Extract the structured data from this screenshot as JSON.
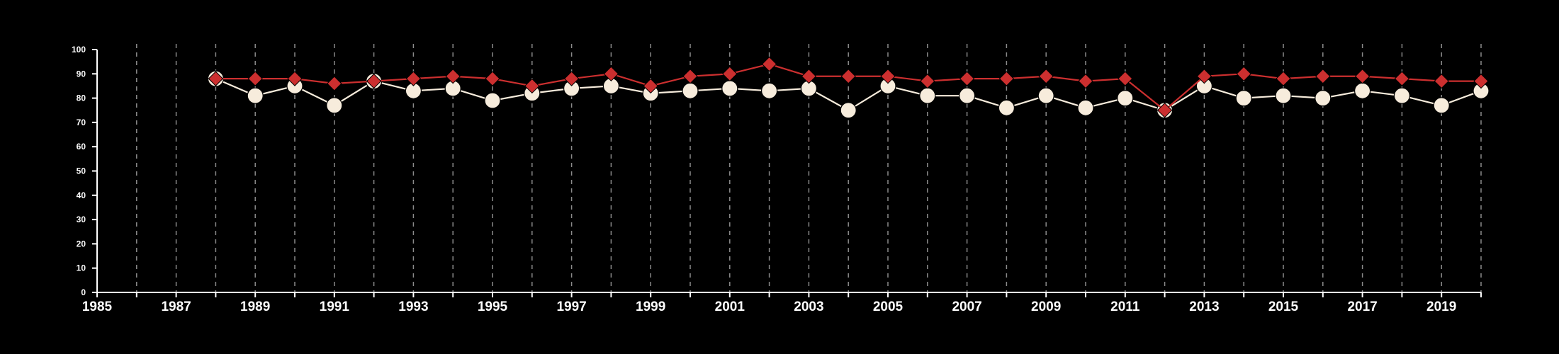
{
  "chart_data": {
    "type": "line",
    "x": [
      1988,
      1989,
      1990,
      1991,
      1992,
      1993,
      1994,
      1995,
      1996,
      1997,
      1998,
      1999,
      2000,
      2001,
      2002,
      2003,
      2004,
      2005,
      2006,
      2007,
      2008,
      2009,
      2010,
      2011,
      2012,
      2013,
      2014,
      2015,
      2016,
      2017,
      2018,
      2019,
      2020
    ],
    "series": [
      {
        "marker": "circle",
        "color": "#f7ecdc",
        "values": [
          88,
          81,
          85,
          77,
          87,
          83,
          84,
          79,
          82,
          84,
          85,
          82,
          83,
          84,
          83,
          84,
          75,
          85,
          81,
          81,
          76,
          81,
          76,
          80,
          75,
          85,
          80,
          81,
          80,
          83,
          81,
          77,
          83
        ]
      },
      {
        "marker": "diamond",
        "color": "#cc2f2f",
        "values": [
          88,
          88,
          88,
          86,
          87,
          88,
          89,
          88,
          85,
          88,
          90,
          85,
          89,
          90,
          94,
          89,
          89,
          89,
          87,
          88,
          88,
          89,
          87,
          88,
          75,
          89,
          90,
          88,
          89,
          89,
          88,
          87,
          87
        ]
      }
    ],
    "xlim": [
      1985,
      2020
    ],
    "ylim": [
      0,
      100
    ],
    "x_ticks": [
      1985,
      1987,
      1989,
      1991,
      1993,
      1995,
      1997,
      1999,
      2001,
      2003,
      2005,
      2007,
      2009,
      2011,
      2013,
      2015,
      2017,
      2019
    ],
    "y_ticks": [
      0,
      10,
      20,
      30,
      40,
      50,
      60,
      70,
      80,
      90,
      100
    ],
    "grid": "vertical dashed at every year",
    "title": "",
    "xlabel": "",
    "ylabel": "",
    "legend": "none",
    "colors": {
      "background": "#000000",
      "axis": "#ffffff",
      "grid": "#8a8a8a"
    }
  }
}
